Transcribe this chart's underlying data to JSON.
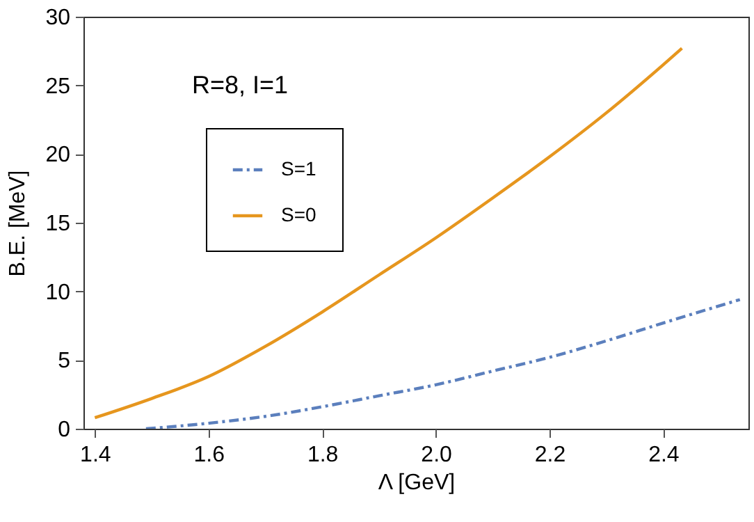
{
  "chart_data": {
    "type": "line",
    "xlabel": "Λ [GeV]",
    "ylabel": "B.E. [MeV]",
    "annotations": [
      "R=8, I=1"
    ],
    "xlim": [
      1.38,
      2.55
    ],
    "xticks": [
      {
        "value": 1.4,
        "label": "1.4"
      },
      {
        "value": 1.6,
        "label": "1.6"
      },
      {
        "value": 1.8,
        "label": "1.8"
      },
      {
        "value": 2.0,
        "label": "2.0"
      },
      {
        "value": 2.2,
        "label": "2.2"
      },
      {
        "value": 2.4,
        "label": "2.4"
      }
    ],
    "ylim": [
      0,
      30
    ],
    "yticks": [
      0,
      5,
      10,
      15,
      20,
      25,
      30
    ],
    "legend": "top left",
    "marker": "none",
    "series": [
      {
        "name": "S=1",
        "color": "#5b7fbd",
        "line_style": "dashed",
        "x": [
          1.49,
          1.6,
          1.7,
          1.8,
          1.9,
          2.0,
          2.1,
          2.2,
          2.3,
          2.4,
          2.535
        ],
        "values": [
          0,
          0.4,
          0.9,
          1.6,
          2.4,
          3.2,
          4.2,
          5.2,
          6.4,
          7.7,
          9.4
        ]
      },
      {
        "name": "S=0",
        "color": "#e6961e",
        "line_style": "solid",
        "x": [
          1.4,
          1.5,
          1.6,
          1.7,
          1.8,
          1.9,
          2.0,
          2.1,
          2.2,
          2.3,
          2.4,
          2.433
        ],
        "values": [
          0.8,
          2.2,
          3.8,
          6.0,
          8.5,
          11.2,
          13.9,
          16.8,
          19.8,
          23.0,
          26.5,
          27.7
        ]
      }
    ]
  }
}
